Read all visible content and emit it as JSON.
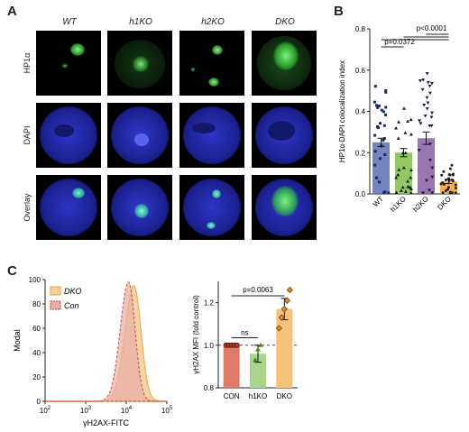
{
  "panels": {
    "a": "A",
    "b": "B",
    "c": "C"
  },
  "micrograph": {
    "columns": [
      "WT",
      "h1KO",
      "h2KO",
      "DKO"
    ],
    "rows": [
      "HP1α",
      "DAPI",
      "Overlay"
    ]
  },
  "chart_data": [
    {
      "type": "bar",
      "categories": [
        "WT",
        "h1KO",
        "h2KO",
        "DKO"
      ],
      "values": [
        0.25,
        0.2,
        0.27,
        0.06
      ],
      "errors": [
        0.02,
        0.02,
        0.03,
        0.01
      ],
      "colors": [
        "#5b6fb3",
        "#7fbf4a",
        "#8a5ea8",
        "#f2a23a"
      ],
      "ylabel": "HP1α-DAPI colocalization index",
      "ylim": [
        0,
        0.8
      ],
      "yticks": [
        "0.0",
        "0.2",
        "0.4",
        "0.6",
        "0.8"
      ],
      "annotations": [
        "p=0.0372",
        "p<0.0001"
      ]
    },
    {
      "type": "area",
      "xlabel": "γH2AX-FITC",
      "ylabel": "Modal",
      "yticks": [
        "0",
        "20",
        "40",
        "60",
        "80",
        "100"
      ],
      "xticks": [
        {
          "base": "10",
          "exp": "2"
        },
        {
          "base": "10",
          "exp": "3"
        },
        {
          "base": "10",
          "exp": "4"
        },
        {
          "base": "10",
          "exp": "5"
        }
      ],
      "legend": [
        {
          "label": "DKO",
          "color": "#f2a23a",
          "fill": "#f7d0a0"
        },
        {
          "label": "Con",
          "color": "#c0392b",
          "fill": "#e9b1a5"
        }
      ]
    },
    {
      "type": "bar",
      "categories": [
        "CON",
        "h1KO",
        "DKO"
      ],
      "values": [
        1.0,
        0.96,
        1.17
      ],
      "errors": [
        0.005,
        0.04,
        0.05
      ],
      "colors": [
        "#e07a66",
        "#a8d58a",
        "#f5c27a"
      ],
      "ylabel": "γH2AX MFI (fold control)",
      "ylim": [
        0.8,
        1.3
      ],
      "yticks": [
        "0.8",
        "1.0",
        "1.2"
      ],
      "annotations": [
        "p=0.0063",
        "ns"
      ]
    }
  ]
}
